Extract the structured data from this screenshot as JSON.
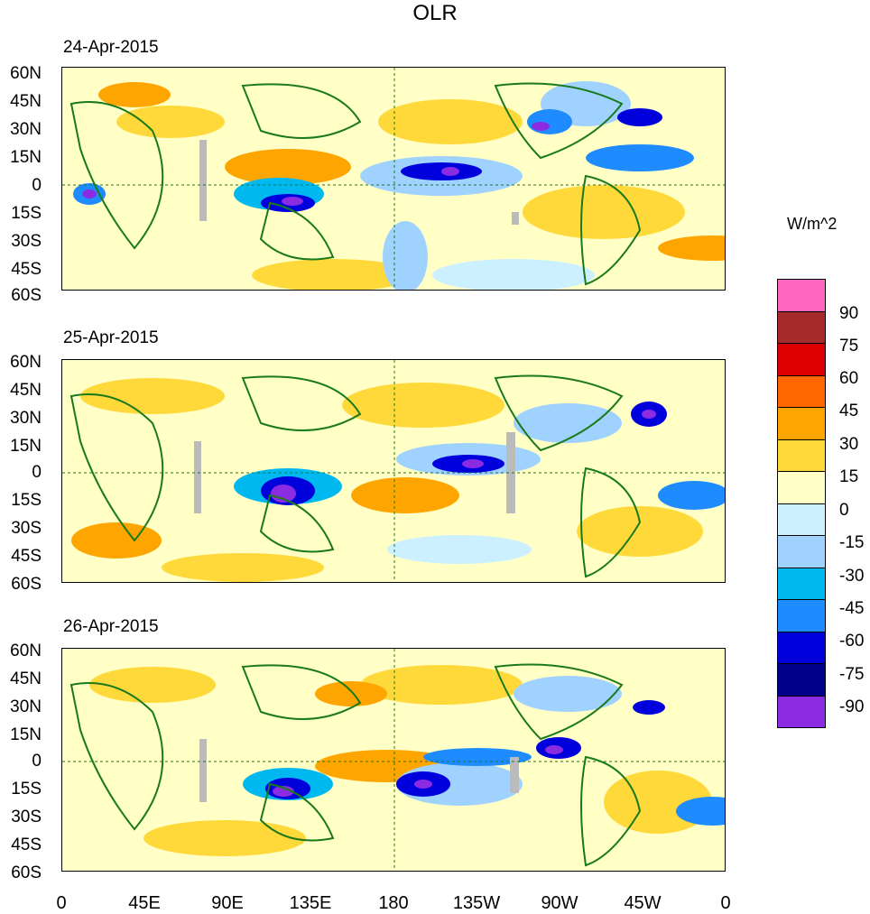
{
  "title": "OLR",
  "panels": [
    {
      "date": "24-Apr-2015"
    },
    {
      "date": "25-Apr-2015"
    },
    {
      "date": "26-Apr-2015"
    }
  ],
  "lat_labels": [
    "60N",
    "45N",
    "30N",
    "15N",
    "0",
    "15S",
    "30S",
    "45S",
    "60S"
  ],
  "lon_labels": [
    "0",
    "45E",
    "90E",
    "135E",
    "180",
    "135W",
    "90W",
    "45W",
    "0"
  ],
  "colorbar": {
    "unit": "W/m^2",
    "labels": [
      "90",
      "75",
      "60",
      "45",
      "30",
      "15",
      "0",
      "-15",
      "-30",
      "-45",
      "-60",
      "-75",
      "-90"
    ],
    "colors": [
      "#ff66c0",
      "#a52a2a",
      "#dd0000",
      "#ff6600",
      "#ffa500",
      "#ffd83a",
      "#ffffc6",
      "#ccf0ff",
      "#a0d2ff",
      "#00b8f0",
      "#1e8cff",
      "#0000dd",
      "#00008b",
      "#8b2be2"
    ]
  },
  "colors": {
    "land_outline": "#1a7a1a",
    "missing": "#bbbbbb"
  }
}
